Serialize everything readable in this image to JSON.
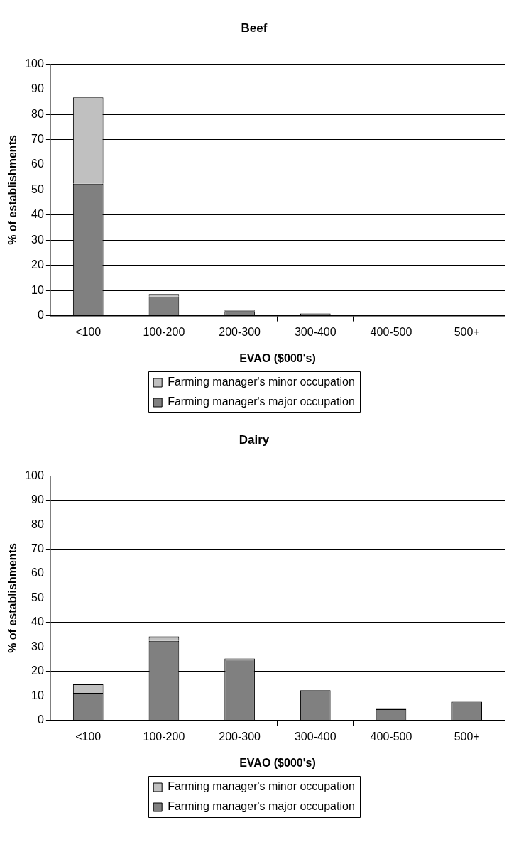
{
  "chart_data": [
    {
      "type": "bar",
      "title": "Beef",
      "xlabel": "EVAO ($000's)",
      "ylabel": "% of establishments",
      "categories": [
        "<100",
        "100-200",
        "200-300",
        "300-400",
        "400-500",
        "500+"
      ],
      "stacked": true,
      "series": [
        {
          "name": "Farming manager's major occupation",
          "color": "#808080",
          "values": [
            52.5,
            7.6,
            1.8,
            0.9,
            0,
            0.4
          ]
        },
        {
          "name": "Farming manager's minor occupation",
          "color": "#c0c0c0",
          "values": [
            34.3,
            1.0,
            0.3,
            0,
            0,
            0
          ]
        }
      ],
      "ylim": [
        0,
        100
      ],
      "yticks": [
        0,
        10,
        20,
        30,
        40,
        50,
        60,
        70,
        80,
        90,
        100
      ],
      "grid": "y",
      "legend": "bottom"
    },
    {
      "type": "bar",
      "title": "Dairy",
      "xlabel": "EVAO ($000's)",
      "ylabel": "% of establishments",
      "categories": [
        "<100",
        "100-200",
        "200-300",
        "300-400",
        "400-500",
        "500+"
      ],
      "stacked": true,
      "series": [
        {
          "name": "Farming manager's major occupation",
          "color": "#808080",
          "values": [
            11.2,
            32.5,
            24.8,
            12.3,
            4.5,
            7.6
          ]
        },
        {
          "name": "Farming manager's minor occupation",
          "color": "#c0c0c0",
          "values": [
            3.5,
            1.8,
            0.5,
            0,
            0.5,
            0
          ]
        }
      ],
      "ylim": [
        0,
        100
      ],
      "yticks": [
        0,
        10,
        20,
        30,
        40,
        50,
        60,
        70,
        80,
        90,
        100
      ],
      "grid": "y",
      "legend": "bottom"
    }
  ]
}
